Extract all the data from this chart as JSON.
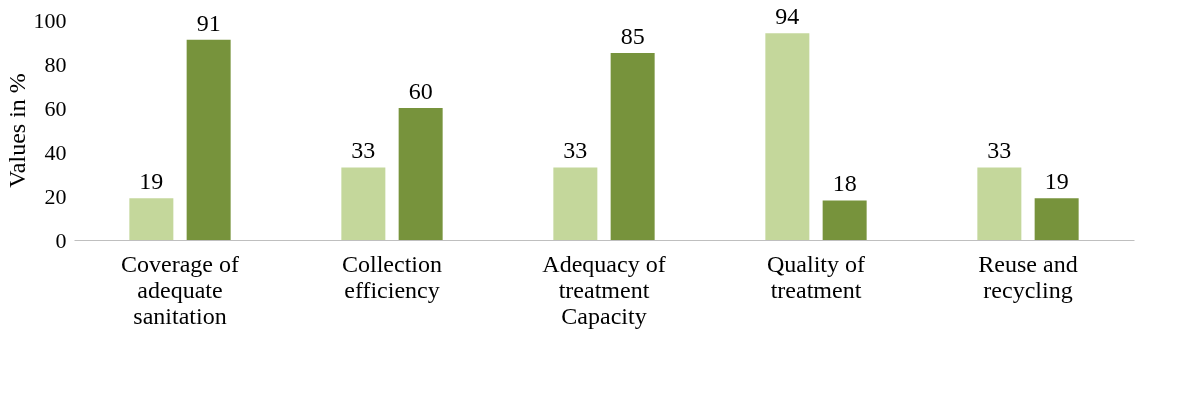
{
  "chart_data": {
    "type": "bar",
    "ylabel": "Values in %",
    "categories": [
      "Coverage of adequate sanitation",
      "Collection efficiency",
      "Adequacy of treatment Capacity",
      "Quality of treatment",
      "Reuse and recycling"
    ],
    "series": [
      {
        "color": "#c4d79b",
        "values": [
          19,
          33,
          33,
          94,
          33
        ]
      },
      {
        "color": "#77933c",
        "values": [
          91,
          60,
          85,
          18,
          19
        ]
      }
    ],
    "ylim": [
      0,
      100
    ],
    "yticks": [
      0,
      20,
      40,
      60,
      80,
      100
    ],
    "grid": false,
    "data_labels": true
  }
}
